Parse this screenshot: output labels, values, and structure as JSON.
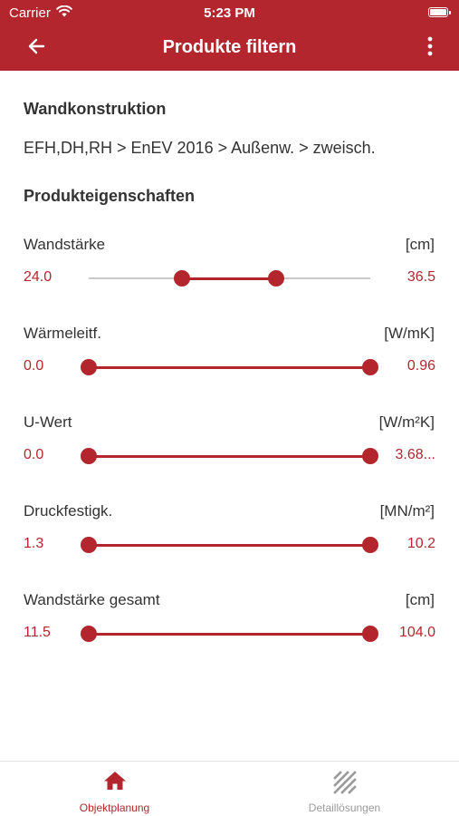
{
  "status_bar": {
    "carrier": "Carrier",
    "time": "5:23 PM"
  },
  "header": {
    "title": "Produkte filtern",
    "back_icon": "arrow-left-icon",
    "menu_icon": "more-vertical-icon"
  },
  "wall_construction": {
    "heading": "Wandkonstruktion",
    "path": "EFH,DH,RH > EnEV 2016 > Außenw. > zweisch."
  },
  "properties": {
    "heading": "Produkteigenschaften",
    "filters": [
      {
        "label": "Wandstärke",
        "unit": "[cm]",
        "min_label": "24.0",
        "max_label": "36.5",
        "low_fraction": 0.33,
        "high_fraction": 0.665
      },
      {
        "label": "Wärmeleitf.",
        "unit": "[W/mK]",
        "min_label": "0.0",
        "max_label": "0.96",
        "low_fraction": 0.0,
        "high_fraction": 1.0
      },
      {
        "label": "U-Wert",
        "unit": "[W/m²K]",
        "min_label": "0.0",
        "max_label": "3.68...",
        "low_fraction": 0.0,
        "high_fraction": 1.0
      },
      {
        "label": "Druckfestigk.",
        "unit": "[MN/m²]",
        "min_label": "1.3",
        "max_label": "10.2",
        "low_fraction": 0.0,
        "high_fraction": 1.0
      },
      {
        "label": "Wandstärke gesamt",
        "unit": "[cm]",
        "min_label": "11.5",
        "max_label": "104.0",
        "low_fraction": 0.0,
        "high_fraction": 1.0
      }
    ]
  },
  "tab_bar": {
    "tabs": [
      {
        "label": "Objektplanung",
        "icon": "home-icon",
        "active": true
      },
      {
        "label": "Detaillösungen",
        "icon": "hatch-pattern-icon",
        "active": false
      }
    ]
  },
  "colors": {
    "accent": "#b4262d",
    "track_inactive": "#c8c8c8",
    "text": "#333333",
    "tab_inactive": "#9a9a9a"
  }
}
